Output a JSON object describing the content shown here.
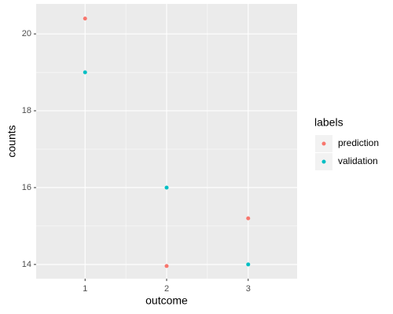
{
  "chart_data": {
    "type": "scatter",
    "x_label": "outcome",
    "y_label": "counts",
    "legend_title": "labels",
    "legend": "right",
    "x": [
      1,
      2,
      3
    ],
    "series": [
      {
        "name": "prediction",
        "color": "#F8766D",
        "values": [
          20.4,
          13.96,
          15.2
        ]
      },
      {
        "name": "validation",
        "color": "#00BFC4",
        "values": [
          19,
          16,
          14
        ]
      }
    ],
    "xlim": [
      0.4,
      3.6
    ],
    "xticks": [
      1,
      2,
      3
    ],
    "x_minor_ticks": [
      1.5,
      2.5
    ],
    "ylim": [
      13.63,
      20.78
    ],
    "yticks": [
      14,
      16,
      18,
      20
    ],
    "y_minor_ticks": [
      15,
      17,
      19
    ],
    "grid": true
  }
}
